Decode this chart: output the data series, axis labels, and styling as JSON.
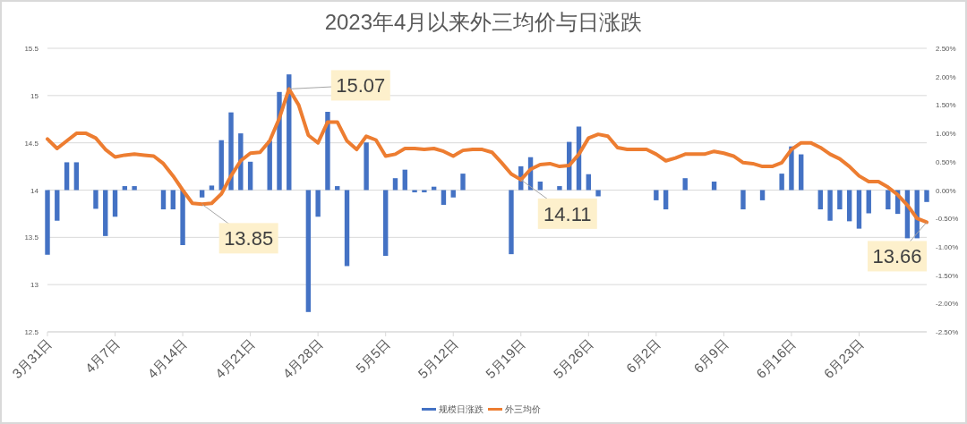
{
  "chart_data": {
    "type": "bar",
    "title": "2023年4月以来外三均价与日涨跌",
    "x": [
      "2023-03-31",
      "2023-04-01",
      "2023-04-02",
      "2023-04-03",
      "2023-04-04",
      "2023-04-05",
      "2023-04-06",
      "2023-04-07",
      "2023-04-08",
      "2023-04-09",
      "2023-04-10",
      "2023-04-11",
      "2023-04-12",
      "2023-04-13",
      "2023-04-14",
      "2023-04-15",
      "2023-04-16",
      "2023-04-17",
      "2023-04-18",
      "2023-04-19",
      "2023-04-20",
      "2023-04-21",
      "2023-04-22",
      "2023-04-23",
      "2023-04-24",
      "2023-04-25",
      "2023-04-26",
      "2023-04-27",
      "2023-04-28",
      "2023-04-29",
      "2023-04-30",
      "2023-05-01",
      "2023-05-02",
      "2023-05-03",
      "2023-05-04",
      "2023-05-05",
      "2023-05-06",
      "2023-05-07",
      "2023-05-08",
      "2023-05-09",
      "2023-05-10",
      "2023-05-11",
      "2023-05-12",
      "2023-05-13",
      "2023-05-14",
      "2023-05-15",
      "2023-05-16",
      "2023-05-17",
      "2023-05-18",
      "2023-05-19",
      "2023-05-20",
      "2023-05-21",
      "2023-05-22",
      "2023-05-23",
      "2023-05-24",
      "2023-05-25",
      "2023-05-26",
      "2023-05-27",
      "2023-05-28",
      "2023-05-29",
      "2023-05-30",
      "2023-05-31",
      "2023-06-01",
      "2023-06-02",
      "2023-06-03",
      "2023-06-04",
      "2023-06-05",
      "2023-06-06",
      "2023-06-07",
      "2023-06-08",
      "2023-06-09",
      "2023-06-10",
      "2023-06-11",
      "2023-06-12",
      "2023-06-13",
      "2023-06-14",
      "2023-06-15",
      "2023-06-16",
      "2023-06-17",
      "2023-06-18",
      "2023-06-19",
      "2023-06-20",
      "2023-06-21",
      "2023-06-22",
      "2023-06-23",
      "2023-06-24",
      "2023-06-25",
      "2023-06-26",
      "2023-06-27",
      "2023-06-28",
      "2023-06-29",
      "2023-06-30"
    ],
    "series": [
      {
        "name": "规模日涨跌",
        "type": "bar",
        "axis": "y2",
        "color": "#4472c4",
        "values": [
          -1.14,
          -0.54,
          0.49,
          0.49,
          null,
          -0.33,
          -0.81,
          -0.47,
          0.07,
          0.07,
          null,
          null,
          -0.34,
          -0.34,
          -0.97,
          null,
          -0.13,
          0.08,
          0.88,
          1.37,
          1.0,
          0.5,
          null,
          0.87,
          1.73,
          2.04,
          null,
          -2.15,
          -0.47,
          1.38,
          0.07,
          -1.34,
          null,
          0.84,
          null,
          -1.16,
          0.21,
          0.36,
          -0.04,
          -0.04,
          0.06,
          -0.26,
          -0.13,
          0.29,
          null,
          null,
          null,
          null,
          -1.13,
          0.42,
          0.58,
          0.15,
          null,
          0.07,
          0.85,
          1.12,
          0.28,
          -0.11,
          null,
          null,
          null,
          null,
          null,
          -0.18,
          -0.34,
          null,
          0.21,
          null,
          null,
          0.15,
          null,
          null,
          -0.34,
          null,
          -0.18,
          null,
          0.29,
          0.77,
          0.63,
          null,
          -0.34,
          -0.54,
          -0.34,
          -0.55,
          -0.68,
          -0.41,
          null,
          -0.34,
          -0.42,
          -0.85,
          -0.85,
          -0.21
        ]
      },
      {
        "name": "外三均价",
        "type": "line",
        "color": "#ed7d31",
        "values": [
          14.54,
          14.44,
          14.52,
          14.6,
          14.6,
          14.55,
          14.43,
          14.35,
          14.37,
          14.38,
          14.37,
          14.36,
          14.28,
          14.15,
          14.0,
          13.86,
          13.85,
          13.86,
          13.96,
          14.15,
          14.31,
          14.39,
          14.4,
          14.52,
          14.76,
          15.07,
          14.9,
          14.58,
          14.5,
          14.72,
          14.72,
          14.52,
          14.43,
          14.57,
          14.53,
          14.36,
          14.38,
          14.44,
          14.44,
          14.43,
          14.44,
          14.41,
          14.36,
          14.42,
          14.43,
          14.43,
          14.4,
          14.29,
          14.17,
          14.11,
          14.22,
          14.27,
          14.28,
          14.25,
          14.26,
          14.38,
          14.55,
          14.59,
          14.57,
          14.45,
          14.43,
          14.43,
          14.43,
          14.38,
          14.31,
          14.34,
          14.38,
          14.38,
          14.38,
          14.41,
          14.39,
          14.36,
          14.29,
          14.28,
          14.25,
          14.25,
          14.29,
          14.43,
          14.5,
          14.5,
          14.45,
          14.38,
          14.33,
          14.25,
          14.15,
          14.09,
          14.09,
          14.03,
          13.95,
          13.84,
          13.7,
          13.66
        ]
      }
    ],
    "xlim": [
      "2023-03-31",
      "2023-06-30"
    ],
    "xticks": [
      {
        "value": "2023-03-31",
        "label": "3月31日"
      },
      {
        "value": "2023-04-07",
        "label": "4月7日"
      },
      {
        "value": "2023-04-14",
        "label": "4月14日"
      },
      {
        "value": "2023-04-21",
        "label": "4月21日"
      },
      {
        "value": "2023-04-28",
        "label": "4月28日"
      },
      {
        "value": "2023-05-05",
        "label": "5月5日"
      },
      {
        "value": "2023-05-12",
        "label": "5月12日"
      },
      {
        "value": "2023-05-19",
        "label": "5月19日"
      },
      {
        "value": "2023-05-26",
        "label": "5月26日"
      },
      {
        "value": "2023-06-02",
        "label": "6月2日"
      },
      {
        "value": "2023-06-09",
        "label": "6月9日"
      },
      {
        "value": "2023-06-16",
        "label": "6月16日"
      },
      {
        "value": "2023-06-23",
        "label": "6月23日"
      }
    ],
    "ylim": [
      12.5,
      15.5
    ],
    "yticks": [
      12.5,
      13,
      13.5,
      14,
      14.5,
      15,
      15.5
    ],
    "y2lim": [
      -2.5,
      2.5
    ],
    "y2ticks": [
      {
        "value": -2.5,
        "label": "-2.50%"
      },
      {
        "value": -2,
        "label": "-2.00%"
      },
      {
        "value": -1.5,
        "label": "-1.50%"
      },
      {
        "value": -1,
        "label": "-1.00%"
      },
      {
        "value": -0.5,
        "label": "-0.50%"
      },
      {
        "value": 0,
        "label": "0.00%"
      },
      {
        "value": 0.5,
        "label": "0.50%"
      },
      {
        "value": 1,
        "label": "1.00%"
      },
      {
        "value": 1.5,
        "label": "1.50%"
      },
      {
        "value": 2,
        "label": "2.00%"
      },
      {
        "value": 2.5,
        "label": "2.50%"
      }
    ],
    "grid": "y",
    "legend": "bottom",
    "marker": "none",
    "line_style": "solid",
    "annotations": [
      {
        "text": "15.07",
        "x": "2023-04-25",
        "y": 15.07
      },
      {
        "text": "13.85",
        "x": "2023-04-16",
        "y": 13.85
      },
      {
        "text": "14.11",
        "x": "2023-05-19",
        "y": 14.11
      },
      {
        "text": "13.66",
        "x": "2023-06-30",
        "y": 13.66
      }
    ]
  }
}
